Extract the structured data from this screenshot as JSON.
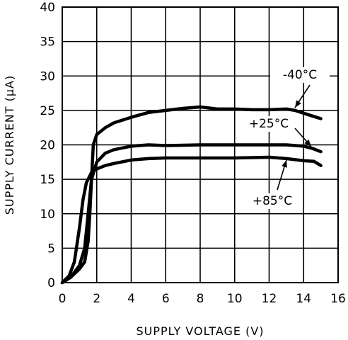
{
  "chart_data": {
    "type": "line",
    "xlabel": "SUPPLY VOLTAGE (V)",
    "ylabel": "SUPPLY CURRENT (µA)",
    "xlim": [
      0,
      16
    ],
    "ylim": [
      0,
      40
    ],
    "xticks": [
      "0",
      "2",
      "4",
      "6",
      "8",
      "10",
      "12",
      "14",
      "16"
    ],
    "yticks": [
      "0",
      "5",
      "10",
      "15",
      "20",
      "25",
      "30",
      "35",
      "40"
    ],
    "grid": true,
    "series": [
      {
        "name": "-40°C",
        "points": [
          [
            0,
            0
          ],
          [
            0.5,
            0.8
          ],
          [
            1.0,
            2.0
          ],
          [
            1.3,
            3.0
          ],
          [
            1.5,
            6.0
          ],
          [
            1.6,
            10.0
          ],
          [
            1.7,
            15.0
          ],
          [
            1.8,
            20.0
          ],
          [
            2.0,
            21.5
          ],
          [
            2.5,
            22.5
          ],
          [
            3.0,
            23.2
          ],
          [
            4.0,
            24.0
          ],
          [
            5.0,
            24.7
          ],
          [
            6.0,
            25.0
          ],
          [
            7.0,
            25.3
          ],
          [
            8.0,
            25.5
          ],
          [
            9.0,
            25.2
          ],
          [
            10.0,
            25.2
          ],
          [
            11.0,
            25.1
          ],
          [
            12.0,
            25.1
          ],
          [
            13.0,
            25.2
          ],
          [
            13.5,
            25.0
          ],
          [
            14.0,
            24.6
          ],
          [
            14.5,
            24.2
          ],
          [
            15.0,
            23.8
          ]
        ]
      },
      {
        "name": "+25°C",
        "points": [
          [
            0,
            0
          ],
          [
            0.5,
            0.8
          ],
          [
            1.0,
            2.5
          ],
          [
            1.3,
            5.0
          ],
          [
            1.5,
            10.0
          ],
          [
            1.7,
            15.0
          ],
          [
            2.0,
            17.5
          ],
          [
            2.5,
            18.8
          ],
          [
            3.0,
            19.3
          ],
          [
            4.0,
            19.8
          ],
          [
            5.0,
            20.0
          ],
          [
            6.0,
            19.9
          ],
          [
            8.0,
            20.0
          ],
          [
            10.0,
            20.0
          ],
          [
            12.0,
            20.0
          ],
          [
            13.0,
            20.0
          ],
          [
            14.0,
            19.8
          ],
          [
            14.5,
            19.5
          ],
          [
            15.0,
            19.0
          ]
        ]
      },
      {
        "name": "+85°C",
        "points": [
          [
            0,
            0
          ],
          [
            0.4,
            1.0
          ],
          [
            0.7,
            3.0
          ],
          [
            1.0,
            8.0
          ],
          [
            1.2,
            12.0
          ],
          [
            1.4,
            14.5
          ],
          [
            1.7,
            16.0
          ],
          [
            2.0,
            16.5
          ],
          [
            2.5,
            17.0
          ],
          [
            3.0,
            17.3
          ],
          [
            4.0,
            17.8
          ],
          [
            5.0,
            18.0
          ],
          [
            6.0,
            18.1
          ],
          [
            8.0,
            18.1
          ],
          [
            10.0,
            18.1
          ],
          [
            12.0,
            18.2
          ],
          [
            13.0,
            18.0
          ],
          [
            14.0,
            17.7
          ],
          [
            14.6,
            17.6
          ],
          [
            15.0,
            17.0
          ]
        ]
      }
    ],
    "annotations": [
      {
        "text": "-40°C",
        "series": "-40°C"
      },
      {
        "text": "+25°C",
        "series": "+25°C"
      },
      {
        "text": "+85°C",
        "series": "+85°C"
      }
    ]
  }
}
